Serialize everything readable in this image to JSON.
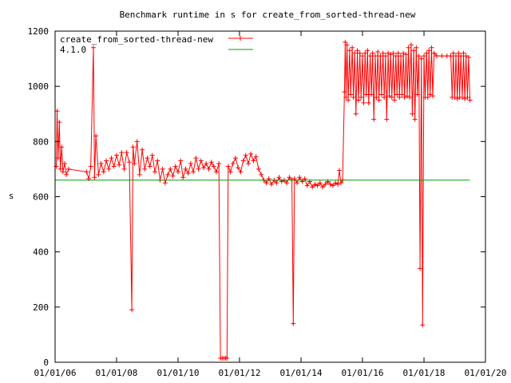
{
  "chart_data": {
    "type": "line",
    "title": "Benchmark runtime in s for create_from_sorted-thread-new",
    "xlabel": "",
    "ylabel": "s",
    "x_is_date": true,
    "xlim": [
      "2006-01-01",
      "2020-01-01"
    ],
    "ylim": [
      0,
      1200
    ],
    "x_ticks": [
      "01/01/06",
      "01/01/08",
      "01/01/10",
      "01/01/12",
      "01/01/14",
      "01/01/16",
      "01/01/18",
      "01/01/20"
    ],
    "y_ticks": [
      "0",
      "200",
      "400",
      "600",
      "800",
      "1000",
      "1200"
    ],
    "legend_position": "top-left",
    "grid": false,
    "series": [
      {
        "name": "create_from_sorted-thread-new",
        "color": "#ff0000",
        "marker": "plus",
        "points": [
          [
            "2006-01-15",
            710
          ],
          [
            "2006-01-25",
            910
          ],
          [
            "2006-02-05",
            740
          ],
          [
            "2006-02-20",
            870
          ],
          [
            "2006-03-05",
            700
          ],
          [
            "2006-03-20",
            780
          ],
          [
            "2006-04-05",
            690
          ],
          [
            "2006-04-25",
            720
          ],
          [
            "2006-05-15",
            680
          ],
          [
            "2006-06-10",
            700
          ],
          [
            "2007-01-10",
            690
          ],
          [
            "2007-02-05",
            665
          ],
          [
            "2007-03-01",
            710
          ],
          [
            "2007-04-01",
            1140
          ],
          [
            "2007-04-15",
            670
          ],
          [
            "2007-05-01",
            820
          ],
          [
            "2007-06-01",
            680
          ],
          [
            "2007-07-01",
            720
          ],
          [
            "2007-08-01",
            690
          ],
          [
            "2007-09-01",
            730
          ],
          [
            "2007-10-01",
            700
          ],
          [
            "2007-11-01",
            740
          ],
          [
            "2007-12-01",
            710
          ],
          [
            "2008-01-01",
            750
          ],
          [
            "2008-02-01",
            715
          ],
          [
            "2008-03-01",
            760
          ],
          [
            "2008-04-01",
            700
          ],
          [
            "2008-05-01",
            760
          ],
          [
            "2008-06-01",
            725
          ],
          [
            "2008-07-01",
            190
          ],
          [
            "2008-07-15",
            780
          ],
          [
            "2008-08-01",
            720
          ],
          [
            "2008-09-01",
            800
          ],
          [
            "2008-10-01",
            680
          ],
          [
            "2008-11-01",
            770
          ],
          [
            "2008-12-01",
            700
          ],
          [
            "2009-01-01",
            740
          ],
          [
            "2009-02-01",
            710
          ],
          [
            "2009-03-01",
            750
          ],
          [
            "2009-04-01",
            690
          ],
          [
            "2009-05-01",
            730
          ],
          [
            "2009-06-01",
            660
          ],
          [
            "2009-07-01",
            700
          ],
          [
            "2009-08-01",
            650
          ],
          [
            "2009-09-01",
            680
          ],
          [
            "2009-10-01",
            700
          ],
          [
            "2009-11-01",
            675
          ],
          [
            "2009-12-01",
            710
          ],
          [
            "2010-01-01",
            690
          ],
          [
            "2010-02-01",
            730
          ],
          [
            "2010-03-01",
            670
          ],
          [
            "2010-04-01",
            700
          ],
          [
            "2010-05-01",
            685
          ],
          [
            "2010-06-01",
            720
          ],
          [
            "2010-07-01",
            690
          ],
          [
            "2010-08-01",
            740
          ],
          [
            "2010-09-01",
            700
          ],
          [
            "2010-10-01",
            730
          ],
          [
            "2010-11-01",
            705
          ],
          [
            "2010-12-01",
            720
          ],
          [
            "2011-01-01",
            700
          ],
          [
            "2011-02-01",
            725
          ],
          [
            "2011-03-01",
            710
          ],
          [
            "2011-04-01",
            690
          ],
          [
            "2011-05-01",
            720
          ],
          [
            "2011-05-20",
            15
          ],
          [
            "2011-06-10",
            15
          ],
          [
            "2011-07-01",
            15
          ],
          [
            "2011-07-20",
            15
          ],
          [
            "2011-08-05",
            15
          ],
          [
            "2011-08-20",
            710
          ],
          [
            "2011-09-15",
            690
          ],
          [
            "2011-10-15",
            720
          ],
          [
            "2011-11-15",
            740
          ],
          [
            "2011-12-15",
            705
          ],
          [
            "2012-01-15",
            690
          ],
          [
            "2012-02-15",
            730
          ],
          [
            "2012-03-15",
            750
          ],
          [
            "2012-04-15",
            720
          ],
          [
            "2012-05-15",
            755
          ],
          [
            "2012-06-15",
            730
          ],
          [
            "2012-07-15",
            745
          ],
          [
            "2012-08-15",
            700
          ],
          [
            "2012-09-15",
            680
          ],
          [
            "2012-10-15",
            660
          ],
          [
            "2012-11-15",
            650
          ],
          [
            "2012-12-15",
            665
          ],
          [
            "2013-01-15",
            645
          ],
          [
            "2013-02-15",
            660
          ],
          [
            "2013-03-15",
            650
          ],
          [
            "2013-04-15",
            670
          ],
          [
            "2013-05-15",
            655
          ],
          [
            "2013-06-15",
            660
          ],
          [
            "2013-07-15",
            650
          ],
          [
            "2013-08-15",
            670
          ],
          [
            "2013-09-15",
            660
          ],
          [
            "2013-10-01",
            140
          ],
          [
            "2013-10-15",
            665
          ],
          [
            "2013-11-15",
            650
          ],
          [
            "2013-12-15",
            670
          ],
          [
            "2014-01-15",
            655
          ],
          [
            "2014-02-15",
            665
          ],
          [
            "2014-03-15",
            640
          ],
          [
            "2014-04-15",
            655
          ],
          [
            "2014-05-15",
            635
          ],
          [
            "2014-06-15",
            645
          ],
          [
            "2014-07-15",
            640
          ],
          [
            "2014-08-15",
            650
          ],
          [
            "2014-09-15",
            635
          ],
          [
            "2014-10-15",
            645
          ],
          [
            "2014-11-15",
            655
          ],
          [
            "2014-12-15",
            645
          ],
          [
            "2015-01-15",
            640
          ],
          [
            "2015-02-15",
            650
          ],
          [
            "2015-03-15",
            645
          ],
          [
            "2015-04-01",
            695
          ],
          [
            "2015-04-20",
            650
          ],
          [
            "2015-05-10",
            660
          ],
          [
            "2015-06-01",
            980
          ],
          [
            "2015-06-10",
            1160
          ],
          [
            "2015-06-20",
            960
          ],
          [
            "2015-07-01",
            1150
          ],
          [
            "2015-07-15",
            950
          ],
          [
            "2015-08-01",
            1130
          ],
          [
            "2015-08-15",
            970
          ],
          [
            "2015-09-01",
            1140
          ],
          [
            "2015-09-15",
            960
          ],
          [
            "2015-10-01",
            1120
          ],
          [
            "2015-10-15",
            900
          ],
          [
            "2015-11-01",
            1130
          ],
          [
            "2015-11-15",
            950
          ],
          [
            "2015-12-01",
            1120
          ],
          [
            "2015-12-15",
            960
          ],
          [
            "2016-01-01",
            1110
          ],
          [
            "2016-01-15",
            940
          ],
          [
            "2016-02-01",
            1120
          ],
          [
            "2016-02-15",
            970
          ],
          [
            "2016-03-01",
            1130
          ],
          [
            "2016-03-15",
            940
          ],
          [
            "2016-04-01",
            1110
          ],
          [
            "2016-04-15",
            970
          ],
          [
            "2016-05-01",
            1120
          ],
          [
            "2016-05-15",
            880
          ],
          [
            "2016-06-01",
            1110
          ],
          [
            "2016-06-15",
            960
          ],
          [
            "2016-07-01",
            1125
          ],
          [
            "2016-07-15",
            950
          ],
          [
            "2016-08-01",
            1110
          ],
          [
            "2016-08-15",
            970
          ],
          [
            "2016-09-01",
            1120
          ],
          [
            "2016-09-15",
            960
          ],
          [
            "2016-10-01",
            1110
          ],
          [
            "2016-10-15",
            880
          ],
          [
            "2016-11-01",
            1120
          ],
          [
            "2016-11-15",
            965
          ],
          [
            "2016-12-01",
            1115
          ],
          [
            "2016-12-15",
            960
          ],
          [
            "2017-01-01",
            1120
          ],
          [
            "2017-01-15",
            950
          ],
          [
            "2017-02-01",
            1110
          ],
          [
            "2017-02-15",
            970
          ],
          [
            "2017-03-01",
            1120
          ],
          [
            "2017-03-15",
            960
          ],
          [
            "2017-04-01",
            1110
          ],
          [
            "2017-04-15",
            970
          ],
          [
            "2017-05-01",
            1120
          ],
          [
            "2017-05-15",
            960
          ],
          [
            "2017-06-01",
            1115
          ],
          [
            "2017-06-15",
            965
          ],
          [
            "2017-07-01",
            1140
          ],
          [
            "2017-07-15",
            960
          ],
          [
            "2017-08-01",
            1150
          ],
          [
            "2017-08-15",
            900
          ],
          [
            "2017-09-01",
            1130
          ],
          [
            "2017-09-15",
            880
          ],
          [
            "2017-10-01",
            1140
          ],
          [
            "2017-10-15",
            970
          ],
          [
            "2017-11-01",
            1110
          ],
          [
            "2017-11-15",
            340
          ],
          [
            "2017-12-01",
            1100
          ],
          [
            "2017-12-15",
            135
          ],
          [
            "2018-01-01",
            1110
          ],
          [
            "2018-01-15",
            960
          ],
          [
            "2018-02-01",
            1120
          ],
          [
            "2018-02-15",
            960
          ],
          [
            "2018-03-01",
            1130
          ],
          [
            "2018-03-15",
            970
          ],
          [
            "2018-04-01",
            1140
          ],
          [
            "2018-04-15",
            965
          ],
          [
            "2018-05-01",
            1120
          ],
          [
            "2018-06-01",
            1110
          ],
          [
            "2018-08-01",
            1110
          ],
          [
            "2018-10-01",
            1110
          ],
          [
            "2018-11-15",
            1110
          ],
          [
            "2018-12-01",
            960
          ],
          [
            "2018-12-15",
            1120
          ],
          [
            "2019-01-01",
            960
          ],
          [
            "2019-01-15",
            1110
          ],
          [
            "2019-02-01",
            955
          ],
          [
            "2019-02-15",
            1120
          ],
          [
            "2019-03-01",
            960
          ],
          [
            "2019-03-15",
            1110
          ],
          [
            "2019-04-01",
            960
          ],
          [
            "2019-04-15",
            1120
          ],
          [
            "2019-05-01",
            955
          ],
          [
            "2019-05-15",
            1110
          ],
          [
            "2019-06-01",
            960
          ],
          [
            "2019-06-15",
            1105
          ],
          [
            "2019-07-01",
            950
          ]
        ]
      },
      {
        "name": "4.1.0",
        "color": "#00a000",
        "marker": "none",
        "points": [
          [
            "2006-01-01",
            660
          ],
          [
            "2019-07-01",
            660
          ]
        ]
      }
    ]
  }
}
